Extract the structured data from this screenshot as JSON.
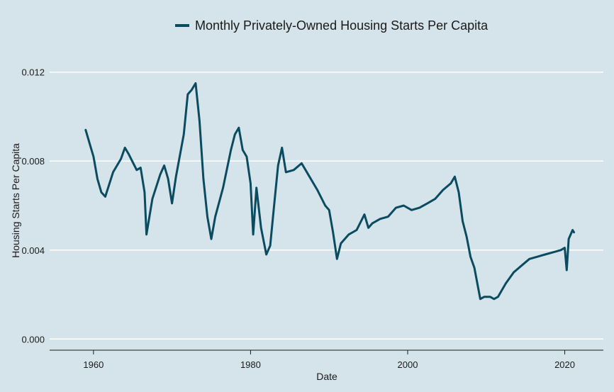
{
  "chart_data": {
    "type": "line",
    "title": "",
    "xlabel": "Date",
    "ylabel": "Housing Starts Per Capita",
    "xlim": [
      "1954-06-01",
      "2024-12-01"
    ],
    "ylim": [
      -0.0005,
      0.0125
    ],
    "x_ticks": [
      {
        "value": "1960-01-01",
        "label": "1960"
      },
      {
        "value": "1980-01-01",
        "label": "1980"
      },
      {
        "value": "2000-01-01",
        "label": "2000"
      },
      {
        "value": "2020-01-01",
        "label": "2020"
      }
    ],
    "y_ticks": [
      {
        "value": 0.0,
        "label": "0.000"
      },
      {
        "value": 0.004,
        "label": "0.004"
      },
      {
        "value": 0.008,
        "label": "0.008"
      },
      {
        "value": 0.012,
        "label": "0.012"
      }
    ],
    "grid": "horizontal",
    "legend_position": "top",
    "series": [
      {
        "name": "Monthly Privately-Owned Housing Starts Per Capita",
        "color": "#0b4b60",
        "x": [
          "1959-01-01",
          "1959-07-01",
          "1960-01-01",
          "1960-07-01",
          "1961-01-01",
          "1961-07-01",
          "1962-07-01",
          "1963-07-01",
          "1964-01-01",
          "1964-07-01",
          "1965-07-01",
          "1966-01-01",
          "1966-07-01",
          "1966-10-01",
          "1967-07-01",
          "1968-07-01",
          "1969-01-01",
          "1969-07-01",
          "1970-01-01",
          "1970-07-01",
          "1971-07-01",
          "1972-01-01",
          "1972-07-01",
          "1973-01-01",
          "1973-07-01",
          "1974-01-01",
          "1974-07-01",
          "1975-01-01",
          "1975-07-01",
          "1976-07-01",
          "1977-07-01",
          "1978-01-01",
          "1978-07-01",
          "1979-01-01",
          "1979-07-01",
          "1980-01-01",
          "1980-05-01",
          "1980-10-01",
          "1981-05-01",
          "1982-01-01",
          "1982-07-01",
          "1983-01-01",
          "1983-07-01",
          "1984-01-01",
          "1984-07-01",
          "1985-07-01",
          "1986-07-01",
          "1987-07-01",
          "1988-07-01",
          "1989-07-01",
          "1990-01-01",
          "1990-07-01",
          "1991-01-01",
          "1991-07-01",
          "1992-07-01",
          "1993-07-01",
          "1994-07-01",
          "1995-01-01",
          "1995-07-01",
          "1996-07-01",
          "1997-07-01",
          "1998-07-01",
          "1999-07-01",
          "2000-07-01",
          "2001-07-01",
          "2002-07-01",
          "2003-07-01",
          "2004-07-01",
          "2005-07-01",
          "2006-01-01",
          "2006-07-01",
          "2007-01-01",
          "2007-07-01",
          "2008-01-01",
          "2008-07-01",
          "2009-04-01",
          "2009-10-01",
          "2010-07-01",
          "2011-01-01",
          "2011-07-01",
          "2012-07-01",
          "2013-07-01",
          "2014-07-01",
          "2015-07-01",
          "2016-07-01",
          "2017-07-01",
          "2018-07-01",
          "2019-07-01",
          "2020-01-01",
          "2020-04-01",
          "2020-07-01",
          "2021-01-01",
          "2021-03-01"
        ],
        "y": [
          0.0094,
          0.0088,
          0.0082,
          0.0072,
          0.0066,
          0.0064,
          0.0075,
          0.0081,
          0.0086,
          0.0083,
          0.0076,
          0.0077,
          0.0066,
          0.0047,
          0.0063,
          0.0074,
          0.0078,
          0.0072,
          0.0061,
          0.0073,
          0.0092,
          0.011,
          0.0112,
          0.0115,
          0.0098,
          0.0072,
          0.0055,
          0.0045,
          0.0055,
          0.0068,
          0.0085,
          0.0092,
          0.0095,
          0.0085,
          0.0082,
          0.007,
          0.0047,
          0.0068,
          0.005,
          0.0038,
          0.0042,
          0.006,
          0.0078,
          0.0086,
          0.0075,
          0.0076,
          0.0079,
          0.0073,
          0.0067,
          0.006,
          0.0058,
          0.0048,
          0.0036,
          0.0043,
          0.0047,
          0.0049,
          0.0056,
          0.005,
          0.0052,
          0.0054,
          0.0055,
          0.0059,
          0.006,
          0.0058,
          0.0059,
          0.0061,
          0.0063,
          0.0067,
          0.007,
          0.0073,
          0.0066,
          0.0053,
          0.0046,
          0.0037,
          0.0032,
          0.0018,
          0.0019,
          0.0019,
          0.0018,
          0.0019,
          0.0025,
          0.003,
          0.0033,
          0.0036,
          0.0037,
          0.0038,
          0.0039,
          0.004,
          0.0041,
          0.0031,
          0.0045,
          0.0049,
          0.0048
        ]
      }
    ]
  }
}
